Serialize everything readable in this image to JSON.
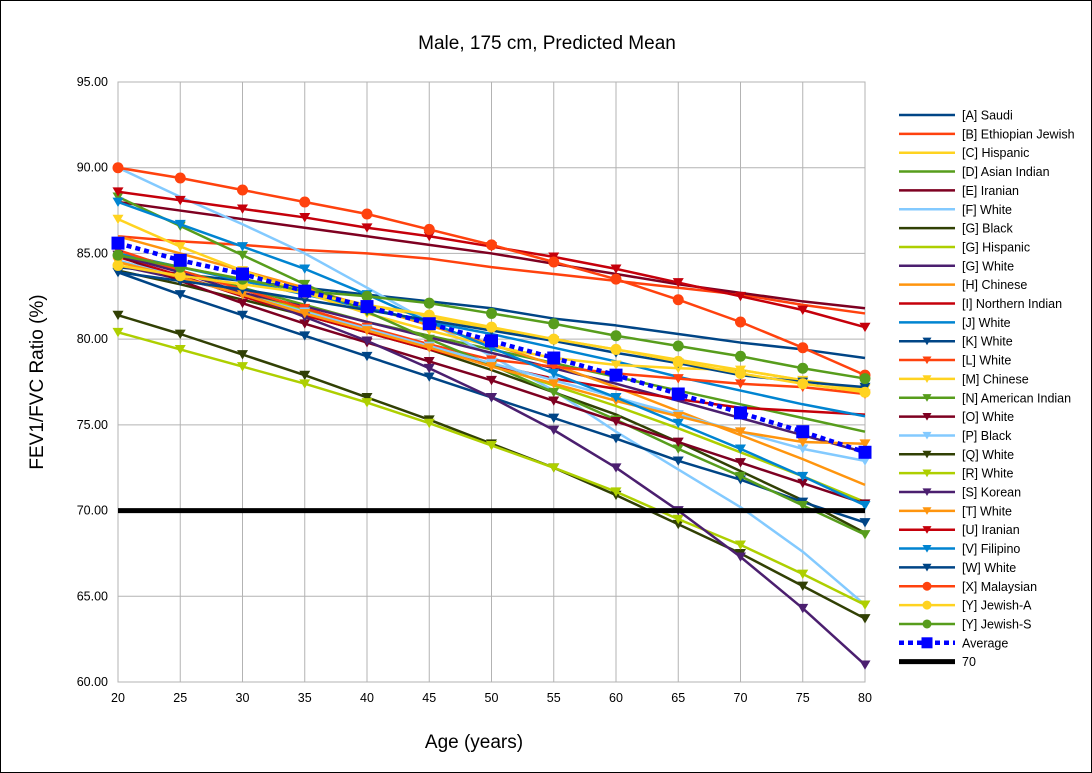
{
  "chart_data": {
    "type": "line",
    "title": "Male, 175 cm, Predicted Mean",
    "xlabel": "Age (years)",
    "ylabel": "FEV1/FVC Ratio (%)",
    "xlim": [
      20,
      80
    ],
    "ylim": [
      60,
      95
    ],
    "x_ticks": [
      20,
      25,
      30,
      35,
      40,
      45,
      50,
      55,
      60,
      65,
      70,
      75,
      80
    ],
    "y_ticks": [
      "60.00",
      "65.00",
      "70.00",
      "75.00",
      "80.00",
      "85.00",
      "90.00",
      "95.00"
    ],
    "grid": true,
    "legend_position": "right",
    "x": [
      20,
      25,
      30,
      35,
      40,
      45,
      50,
      55,
      60,
      65,
      70,
      75,
      80
    ],
    "series": [
      {
        "name": "[A] Saudi",
        "color": "#004586",
        "marker": "none",
        "values": [
          84.2,
          83.8,
          83.4,
          83.0,
          82.6,
          82.2,
          81.8,
          81.2,
          80.8,
          80.3,
          79.8,
          79.4,
          78.9
        ]
      },
      {
        "name": "[B] Ethiopian Jewish",
        "color": "#ff420e",
        "marker": "none",
        "values": [
          86.0,
          85.7,
          85.5,
          85.2,
          85.0,
          84.7,
          84.2,
          83.8,
          83.4,
          83.0,
          82.6,
          82.0,
          81.5
        ]
      },
      {
        "name": "[C] Hispanic",
        "color": "#ffd320",
        "marker": "none",
        "values": [
          85.0,
          84.2,
          83.5,
          82.8,
          82.0,
          81.3,
          80.6,
          80.0,
          79.4,
          78.8,
          78.2,
          77.6,
          77.0
        ]
      },
      {
        "name": "[D] Asian Indian",
        "color": "#579d1c",
        "marker": "none",
        "values": [
          85.0,
          84.0,
          83.0,
          82.0,
          81.0,
          80.2,
          79.4,
          78.6,
          77.8,
          77.0,
          76.2,
          75.4,
          74.6
        ]
      },
      {
        "name": "[E] Iranian",
        "color": "#7e0021",
        "marker": "none",
        "values": [
          88.0,
          87.5,
          87.0,
          86.5,
          86.0,
          85.5,
          85.0,
          84.4,
          83.8,
          83.2,
          82.7,
          82.2,
          81.8
        ]
      },
      {
        "name": "[F] White",
        "color": "#83caff",
        "marker": "none",
        "values": [
          90.0,
          88.3,
          86.7,
          85.0,
          83.0,
          81.0,
          79.0,
          77.0,
          74.6,
          72.4,
          70.2,
          67.6,
          64.5
        ]
      },
      {
        "name": "[G] Black",
        "color": "#314004",
        "marker": "none",
        "values": [
          84.0,
          83.2,
          82.3,
          81.4,
          80.4,
          79.4,
          78.2,
          76.9,
          75.6,
          74.0,
          72.3,
          70.6,
          68.7
        ]
      },
      {
        "name": "[G] Hispanic",
        "color": "#aecf00",
        "marker": "none",
        "values": [
          84.5,
          83.6,
          82.7,
          81.7,
          80.7,
          79.6,
          78.5,
          77.3,
          76.1,
          74.8,
          73.4,
          72.0,
          70.5
        ]
      },
      {
        "name": "[G] White",
        "color": "#4b1f6f",
        "marker": "none",
        "values": [
          84.3,
          83.5,
          82.7,
          81.9,
          81.0,
          80.1,
          79.2,
          78.3,
          77.4,
          76.4,
          75.4,
          74.4,
          73.4
        ]
      },
      {
        "name": "[H] Chinese",
        "color": "#ff950e",
        "marker": "none",
        "values": [
          86.0,
          85.0,
          84.0,
          83.0,
          81.9,
          80.8,
          79.7,
          78.5,
          77.2,
          75.8,
          74.4,
          73.0,
          71.5
        ]
      },
      {
        "name": "[I] Northern Indian",
        "color": "#c5000b",
        "marker": "none",
        "values": [
          84.8,
          83.7,
          82.5,
          81.4,
          80.4,
          79.4,
          78.5,
          77.7,
          77.1,
          76.5,
          76.0,
          75.8,
          75.6
        ]
      },
      {
        "name": "[J] White",
        "color": "#0084d1",
        "marker": "none",
        "values": [
          85.0,
          84.2,
          83.4,
          82.6,
          81.8,
          81.0,
          80.3,
          79.5,
          78.7,
          77.8,
          77.0,
          76.2,
          75.5
        ]
      },
      {
        "name": "[K] White",
        "color": "#004586",
        "marker": "triangle",
        "values": [
          83.9,
          82.6,
          81.4,
          80.2,
          79.0,
          77.8,
          76.6,
          75.4,
          74.2,
          72.9,
          71.8,
          70.5,
          69.3
        ]
      },
      {
        "name": "[L] White",
        "color": "#ff420e",
        "marker": "triangle",
        "values": [
          85.2,
          84.0,
          82.9,
          81.8,
          80.7,
          79.7,
          78.8,
          78.4,
          78.0,
          77.7,
          77.4,
          77.2,
          76.8
        ]
      },
      {
        "name": "[M] Chinese",
        "color": "#ffd320",
        "marker": "triangle",
        "values": [
          87.0,
          85.4,
          84.0,
          82.7,
          81.5,
          80.5,
          79.6,
          78.9,
          78.5,
          78.3,
          78.2,
          77.6,
          77.1
        ]
      },
      {
        "name": "[N] American Indian",
        "color": "#579d1c",
        "marker": "triangle",
        "values": [
          88.3,
          86.6,
          84.9,
          83.2,
          81.6,
          80.0,
          78.5,
          76.9,
          75.3,
          73.6,
          72.0,
          70.3,
          68.6
        ]
      },
      {
        "name": "[O] White",
        "color": "#7e0021",
        "marker": "triangle",
        "values": [
          84.9,
          83.4,
          82.1,
          80.9,
          79.8,
          78.7,
          77.6,
          76.4,
          75.2,
          74.0,
          72.8,
          71.6,
          70.4
        ]
      },
      {
        "name": "[P] Black",
        "color": "#83caff",
        "marker": "triangle",
        "values": [
          84.6,
          83.6,
          82.6,
          81.6,
          80.6,
          79.6,
          78.6,
          77.6,
          76.6,
          75.6,
          74.6,
          73.6,
          72.9
        ]
      },
      {
        "name": "[Q] White",
        "color": "#314004",
        "marker": "triangle",
        "values": [
          81.4,
          80.3,
          79.1,
          77.9,
          76.6,
          75.3,
          73.9,
          72.5,
          70.9,
          69.2,
          67.5,
          65.6,
          63.7
        ]
      },
      {
        "name": "[R] White",
        "color": "#aecf00",
        "marker": "triangle",
        "values": [
          80.4,
          79.4,
          78.4,
          77.4,
          76.3,
          75.1,
          73.8,
          72.5,
          71.1,
          69.5,
          68.0,
          66.3,
          64.5
        ]
      },
      {
        "name": "[S] Korean",
        "color": "#4b1f6f",
        "marker": "triangle",
        "values": [
          84.9,
          83.9,
          82.7,
          81.3,
          79.9,
          78.3,
          76.6,
          74.7,
          72.5,
          70.0,
          67.3,
          64.3,
          61.0
        ]
      },
      {
        "name": "[T] White",
        "color": "#ff950e",
        "marker": "triangle",
        "values": [
          84.5,
          83.6,
          82.6,
          81.5,
          80.5,
          79.5,
          78.4,
          77.4,
          76.4,
          75.5,
          74.6,
          74.0,
          73.9
        ]
      },
      {
        "name": "[U] Iranian",
        "color": "#c5000b",
        "marker": "triangle",
        "values": [
          88.6,
          88.1,
          87.6,
          87.1,
          86.5,
          86.0,
          85.4,
          84.8,
          84.1,
          83.3,
          82.5,
          81.7,
          80.7
        ]
      },
      {
        "name": "[V] Filipino",
        "color": "#0084d1",
        "marker": "triangle",
        "values": [
          88.0,
          86.7,
          85.4,
          84.1,
          82.6,
          81.0,
          79.5,
          78.0,
          76.6,
          75.1,
          73.6,
          72.0,
          70.3
        ]
      },
      {
        "name": "[W] White",
        "color": "#004586",
        "marker": "triangle",
        "values": [
          83.9,
          83.4,
          82.9,
          82.3,
          81.7,
          81.1,
          80.5,
          79.9,
          79.2,
          78.6,
          77.9,
          77.5,
          77.2
        ]
      },
      {
        "name": "[X] Malaysian",
        "color": "#ff420e",
        "marker": "circle",
        "values": [
          90.0,
          89.4,
          88.7,
          88.0,
          87.3,
          86.4,
          85.5,
          84.5,
          83.5,
          82.3,
          81.0,
          79.5,
          77.9
        ]
      },
      {
        "name": "[Y] Jewish-A",
        "color": "#ffd320",
        "marker": "circle",
        "values": [
          84.3,
          83.7,
          83.2,
          82.7,
          82.0,
          81.4,
          80.7,
          80.0,
          79.4,
          78.7,
          78.0,
          77.4,
          76.9
        ]
      },
      {
        "name": "[Y] Jewish-S",
        "color": "#579d1c",
        "marker": "circle",
        "values": [
          84.9,
          84.2,
          83.5,
          82.8,
          82.5,
          82.1,
          81.5,
          80.9,
          80.2,
          79.6,
          79.0,
          78.3,
          77.7
        ]
      },
      {
        "name": "Average",
        "color": "#0000ff",
        "marker": "square",
        "dashed": true,
        "values": [
          85.6,
          84.6,
          83.8,
          82.8,
          81.9,
          80.9,
          79.9,
          78.9,
          77.9,
          76.8,
          75.7,
          74.6,
          73.4
        ]
      },
      {
        "name": "70",
        "color": "#000000",
        "marker": "none",
        "thick": true,
        "values": [
          70,
          70,
          70,
          70,
          70,
          70,
          70,
          70,
          70,
          70,
          70,
          70,
          70
        ]
      }
    ]
  }
}
